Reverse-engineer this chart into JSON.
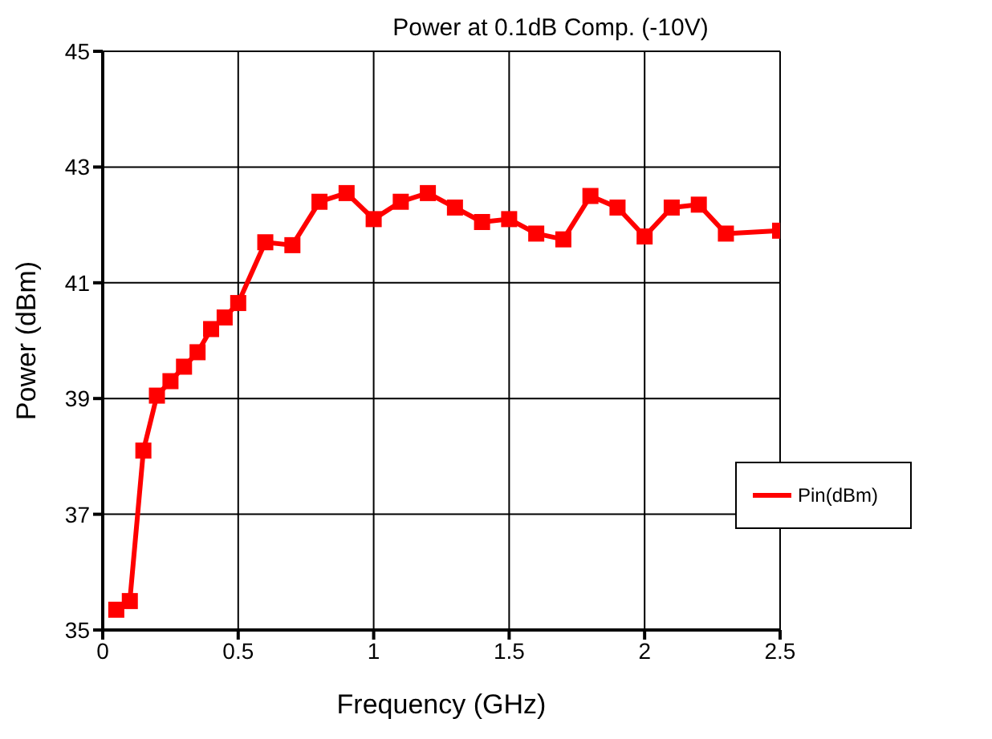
{
  "chart_data": {
    "type": "line",
    "title": "Power at 0.1dB Comp. (-10V)",
    "xlabel": "Frequency (GHz)",
    "ylabel": "Power (dBm)",
    "x": [
      0.05,
      0.1,
      0.15,
      0.2,
      0.25,
      0.3,
      0.35,
      0.4,
      0.45,
      0.5,
      0.6,
      0.7,
      0.8,
      0.9,
      1.0,
      1.1,
      1.2,
      1.3,
      1.4,
      1.5,
      1.6,
      1.7,
      1.8,
      1.9,
      2.0,
      2.1,
      2.2,
      2.3,
      2.5
    ],
    "series": [
      {
        "name": "Pin(dBm)",
        "color": "#ff0000",
        "values": [
          35.35,
          35.5,
          38.1,
          39.05,
          39.3,
          39.55,
          39.8,
          40.2,
          40.4,
          40.65,
          41.7,
          41.65,
          42.4,
          42.55,
          42.1,
          42.4,
          42.55,
          42.3,
          42.05,
          42.1,
          41.85,
          41.75,
          42.5,
          42.3,
          41.8,
          42.3,
          42.35,
          41.85,
          41.9
        ]
      }
    ],
    "xlim": [
      0,
      2.5
    ],
    "xticks": [
      0,
      0.5,
      1,
      1.5,
      2,
      2.5
    ],
    "ylim": [
      35,
      45
    ],
    "yticks": [
      35,
      37,
      39,
      41,
      43,
      45
    ],
    "grid": true,
    "legend": "right",
    "marker": "square",
    "line_style": "solid"
  }
}
